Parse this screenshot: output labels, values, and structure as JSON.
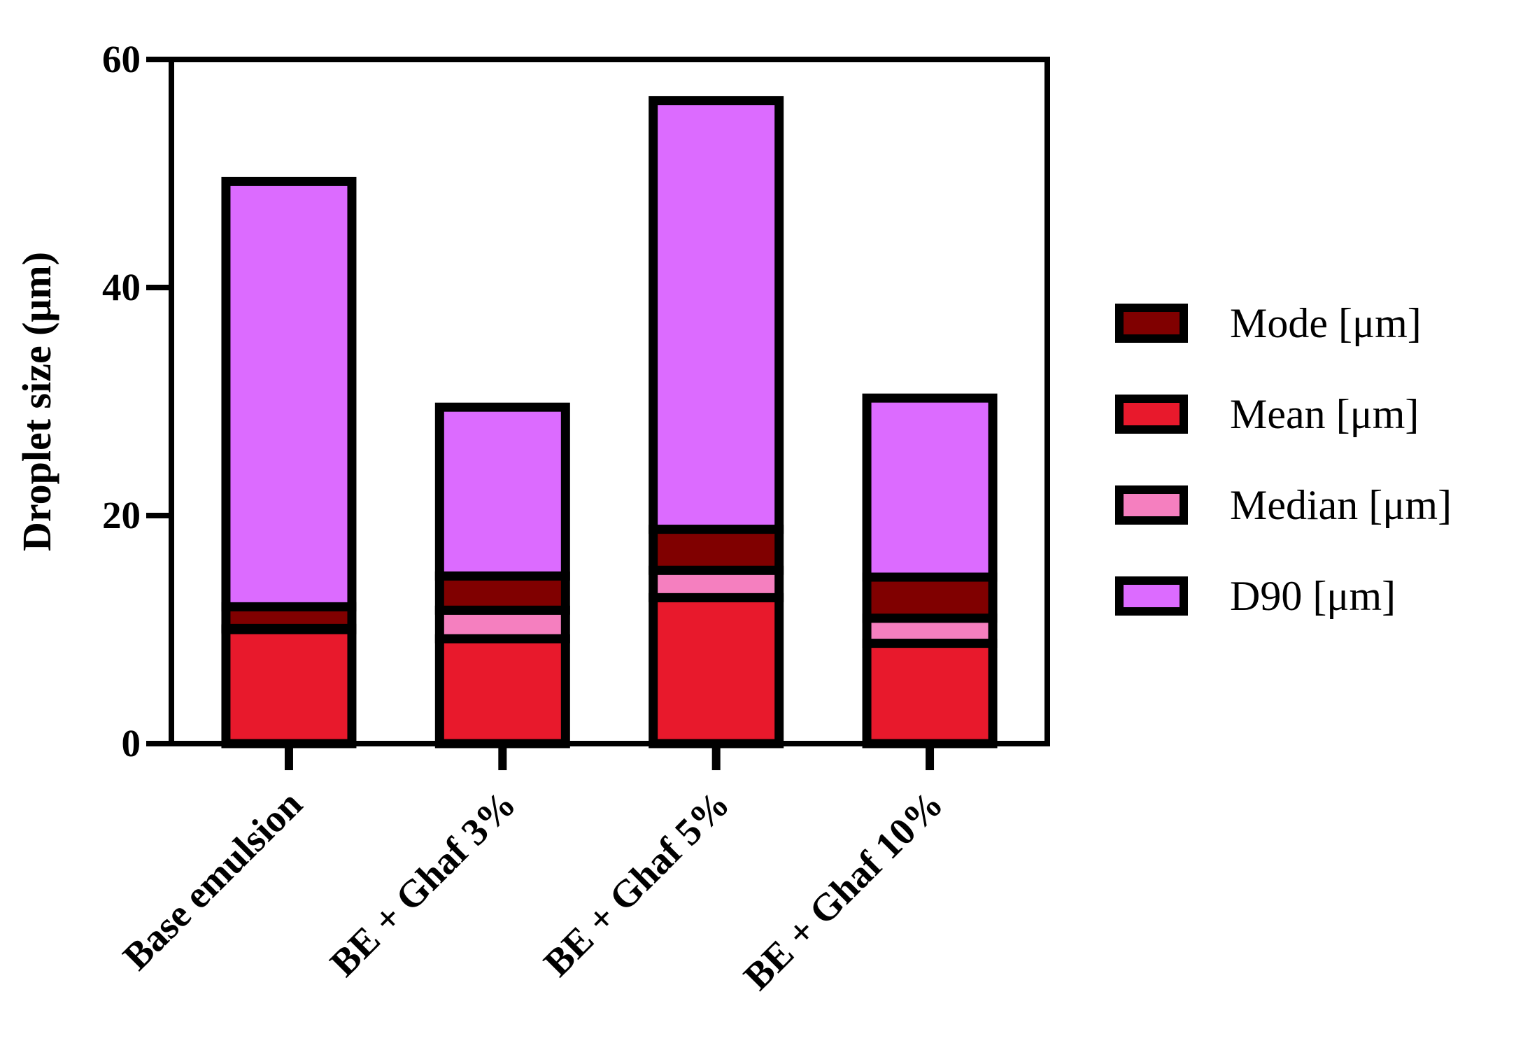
{
  "chart_data": {
    "type": "bar",
    "stacked": true,
    "title": "",
    "xlabel": "",
    "ylabel": "Droplet size (μm)",
    "ylim": [
      0,
      60
    ],
    "yticks": [
      "0",
      "20",
      "40",
      "60"
    ],
    "grid": false,
    "legend_position": "right",
    "categories": [
      "Base emulsion",
      "BE + Ghaf 3%",
      "BE + Ghaf 5%",
      "BE + Ghaf 10%"
    ],
    "series": [
      {
        "name": "Mean [μm]",
        "color": "#E8192C",
        "values": [
          10.0,
          9.2,
          12.8,
          8.8
        ]
      },
      {
        "name": "Median [μm]",
        "color": "#F57FBF",
        "values": [
          0.1,
          2.5,
          2.4,
          2.2
        ]
      },
      {
        "name": "Mode [μm]",
        "color": "#800000",
        "values": [
          1.9,
          3.0,
          3.6,
          3.6
        ]
      },
      {
        "name": "D90 [μm]",
        "color": "#DC6BFF",
        "values": [
          37.3,
          14.8,
          37.6,
          15.7
        ]
      }
    ],
    "legend_order": [
      "Mode [μm]",
      "Mean [μm]",
      "Median [μm]",
      "D90 [μm]"
    ]
  }
}
